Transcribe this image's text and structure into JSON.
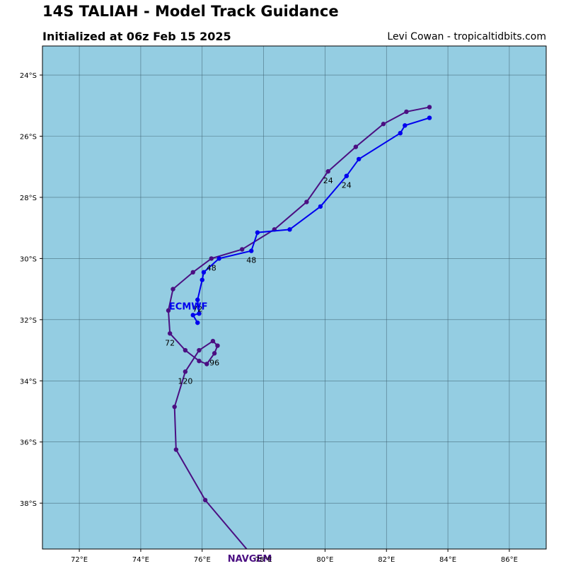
{
  "header": {
    "title": "14S TALIAH - Model Track Guidance",
    "subtitle": "Initialized at 06z Feb 15 2025",
    "credit": "Levi Cowan - tropicaltidbits.com"
  },
  "map": {
    "ocean_color": "#94cde2",
    "grid_color": "#3a5a6a",
    "lon_range": [
      70.8,
      87.2
    ],
    "lat_range": [
      -23.05,
      -39.5
    ],
    "lon_ticks": [
      {
        "value": 72,
        "label": "72°E"
      },
      {
        "value": 74,
        "label": "74°E"
      },
      {
        "value": 76,
        "label": "76°E"
      },
      {
        "value": 78,
        "label": "78°E"
      },
      {
        "value": 80,
        "label": "80°E"
      },
      {
        "value": 82,
        "label": "82°E"
      },
      {
        "value": 84,
        "label": "84°E"
      },
      {
        "value": 86,
        "label": "86°E"
      }
    ],
    "lat_ticks": [
      {
        "value": -24,
        "label": "24°S"
      },
      {
        "value": -26,
        "label": "26°S"
      },
      {
        "value": -28,
        "label": "28°S"
      },
      {
        "value": -30,
        "label": "30°S"
      },
      {
        "value": -32,
        "label": "32°S"
      },
      {
        "value": -34,
        "label": "34°S"
      },
      {
        "value": -36,
        "label": "36°S"
      },
      {
        "value": -38,
        "label": "38°S"
      }
    ]
  },
  "chart_data": {
    "type": "line",
    "title": "14S TALIAH - Model Track Guidance",
    "xlabel": "",
    "ylabel": "",
    "xlim": [
      70.8,
      87.2
    ],
    "ylim": [
      -39.5,
      -23.05
    ],
    "grid": true,
    "series": [
      {
        "name": "ECMWF",
        "color": "#0000ee",
        "label": {
          "text": "ECMWF",
          "lon": 75.55,
          "lat": -31.55
        },
        "points": [
          [
            83.4,
            -25.4
          ],
          [
            82.6,
            -25.65
          ],
          [
            82.45,
            -25.9
          ],
          [
            81.1,
            -26.75
          ],
          [
            80.7,
            -27.3
          ],
          [
            79.85,
            -28.3
          ],
          [
            78.85,
            -29.05
          ],
          [
            77.8,
            -29.15
          ],
          [
            77.6,
            -29.75
          ],
          [
            76.55,
            -30.0
          ],
          [
            76.05,
            -30.45
          ],
          [
            76.0,
            -30.7
          ],
          [
            75.85,
            -31.35
          ],
          [
            75.9,
            -31.8
          ],
          [
            75.7,
            -31.85
          ],
          [
            75.85,
            -32.1
          ]
        ],
        "hour_labels": [
          {
            "text": "24",
            "lon": 80.7,
            "lat": -27.6
          },
          {
            "text": "48",
            "lon": 77.6,
            "lat": -30.05
          },
          {
            "text": "72",
            "lon": 75.85,
            "lat": -31.65
          }
        ]
      },
      {
        "name": "NAVGEM",
        "color": "#4b0f82",
        "label": {
          "text": "NAVGEM",
          "lon": 77.55,
          "lat": -39.8
        },
        "points": [
          [
            83.4,
            -25.05
          ],
          [
            82.65,
            -25.2
          ],
          [
            81.9,
            -25.6
          ],
          [
            81.0,
            -26.35
          ],
          [
            80.1,
            -27.15
          ],
          [
            79.4,
            -28.15
          ],
          [
            78.35,
            -29.05
          ],
          [
            77.3,
            -29.7
          ],
          [
            76.3,
            -30.0
          ],
          [
            75.7,
            -30.45
          ],
          [
            75.05,
            -31.0
          ],
          [
            74.9,
            -31.7
          ],
          [
            74.95,
            -32.45
          ],
          [
            75.45,
            -33.0
          ],
          [
            75.9,
            -33.35
          ],
          [
            76.15,
            -33.45
          ],
          [
            76.4,
            -33.1
          ],
          [
            76.5,
            -32.85
          ],
          [
            76.35,
            -32.7
          ],
          [
            75.9,
            -33.0
          ],
          [
            75.45,
            -33.7
          ],
          [
            75.1,
            -34.85
          ],
          [
            75.15,
            -36.25
          ],
          [
            76.1,
            -37.9
          ],
          [
            77.7,
            -39.8
          ]
        ],
        "hour_labels": [
          {
            "text": "24",
            "lon": 80.1,
            "lat": -27.45
          },
          {
            "text": "48",
            "lon": 76.3,
            "lat": -30.3
          },
          {
            "text": "72",
            "lon": 74.95,
            "lat": -32.75
          },
          {
            "text": "96",
            "lon": 76.4,
            "lat": -33.4
          },
          {
            "text": "120",
            "lon": 75.45,
            "lat": -34.0
          }
        ]
      }
    ]
  }
}
